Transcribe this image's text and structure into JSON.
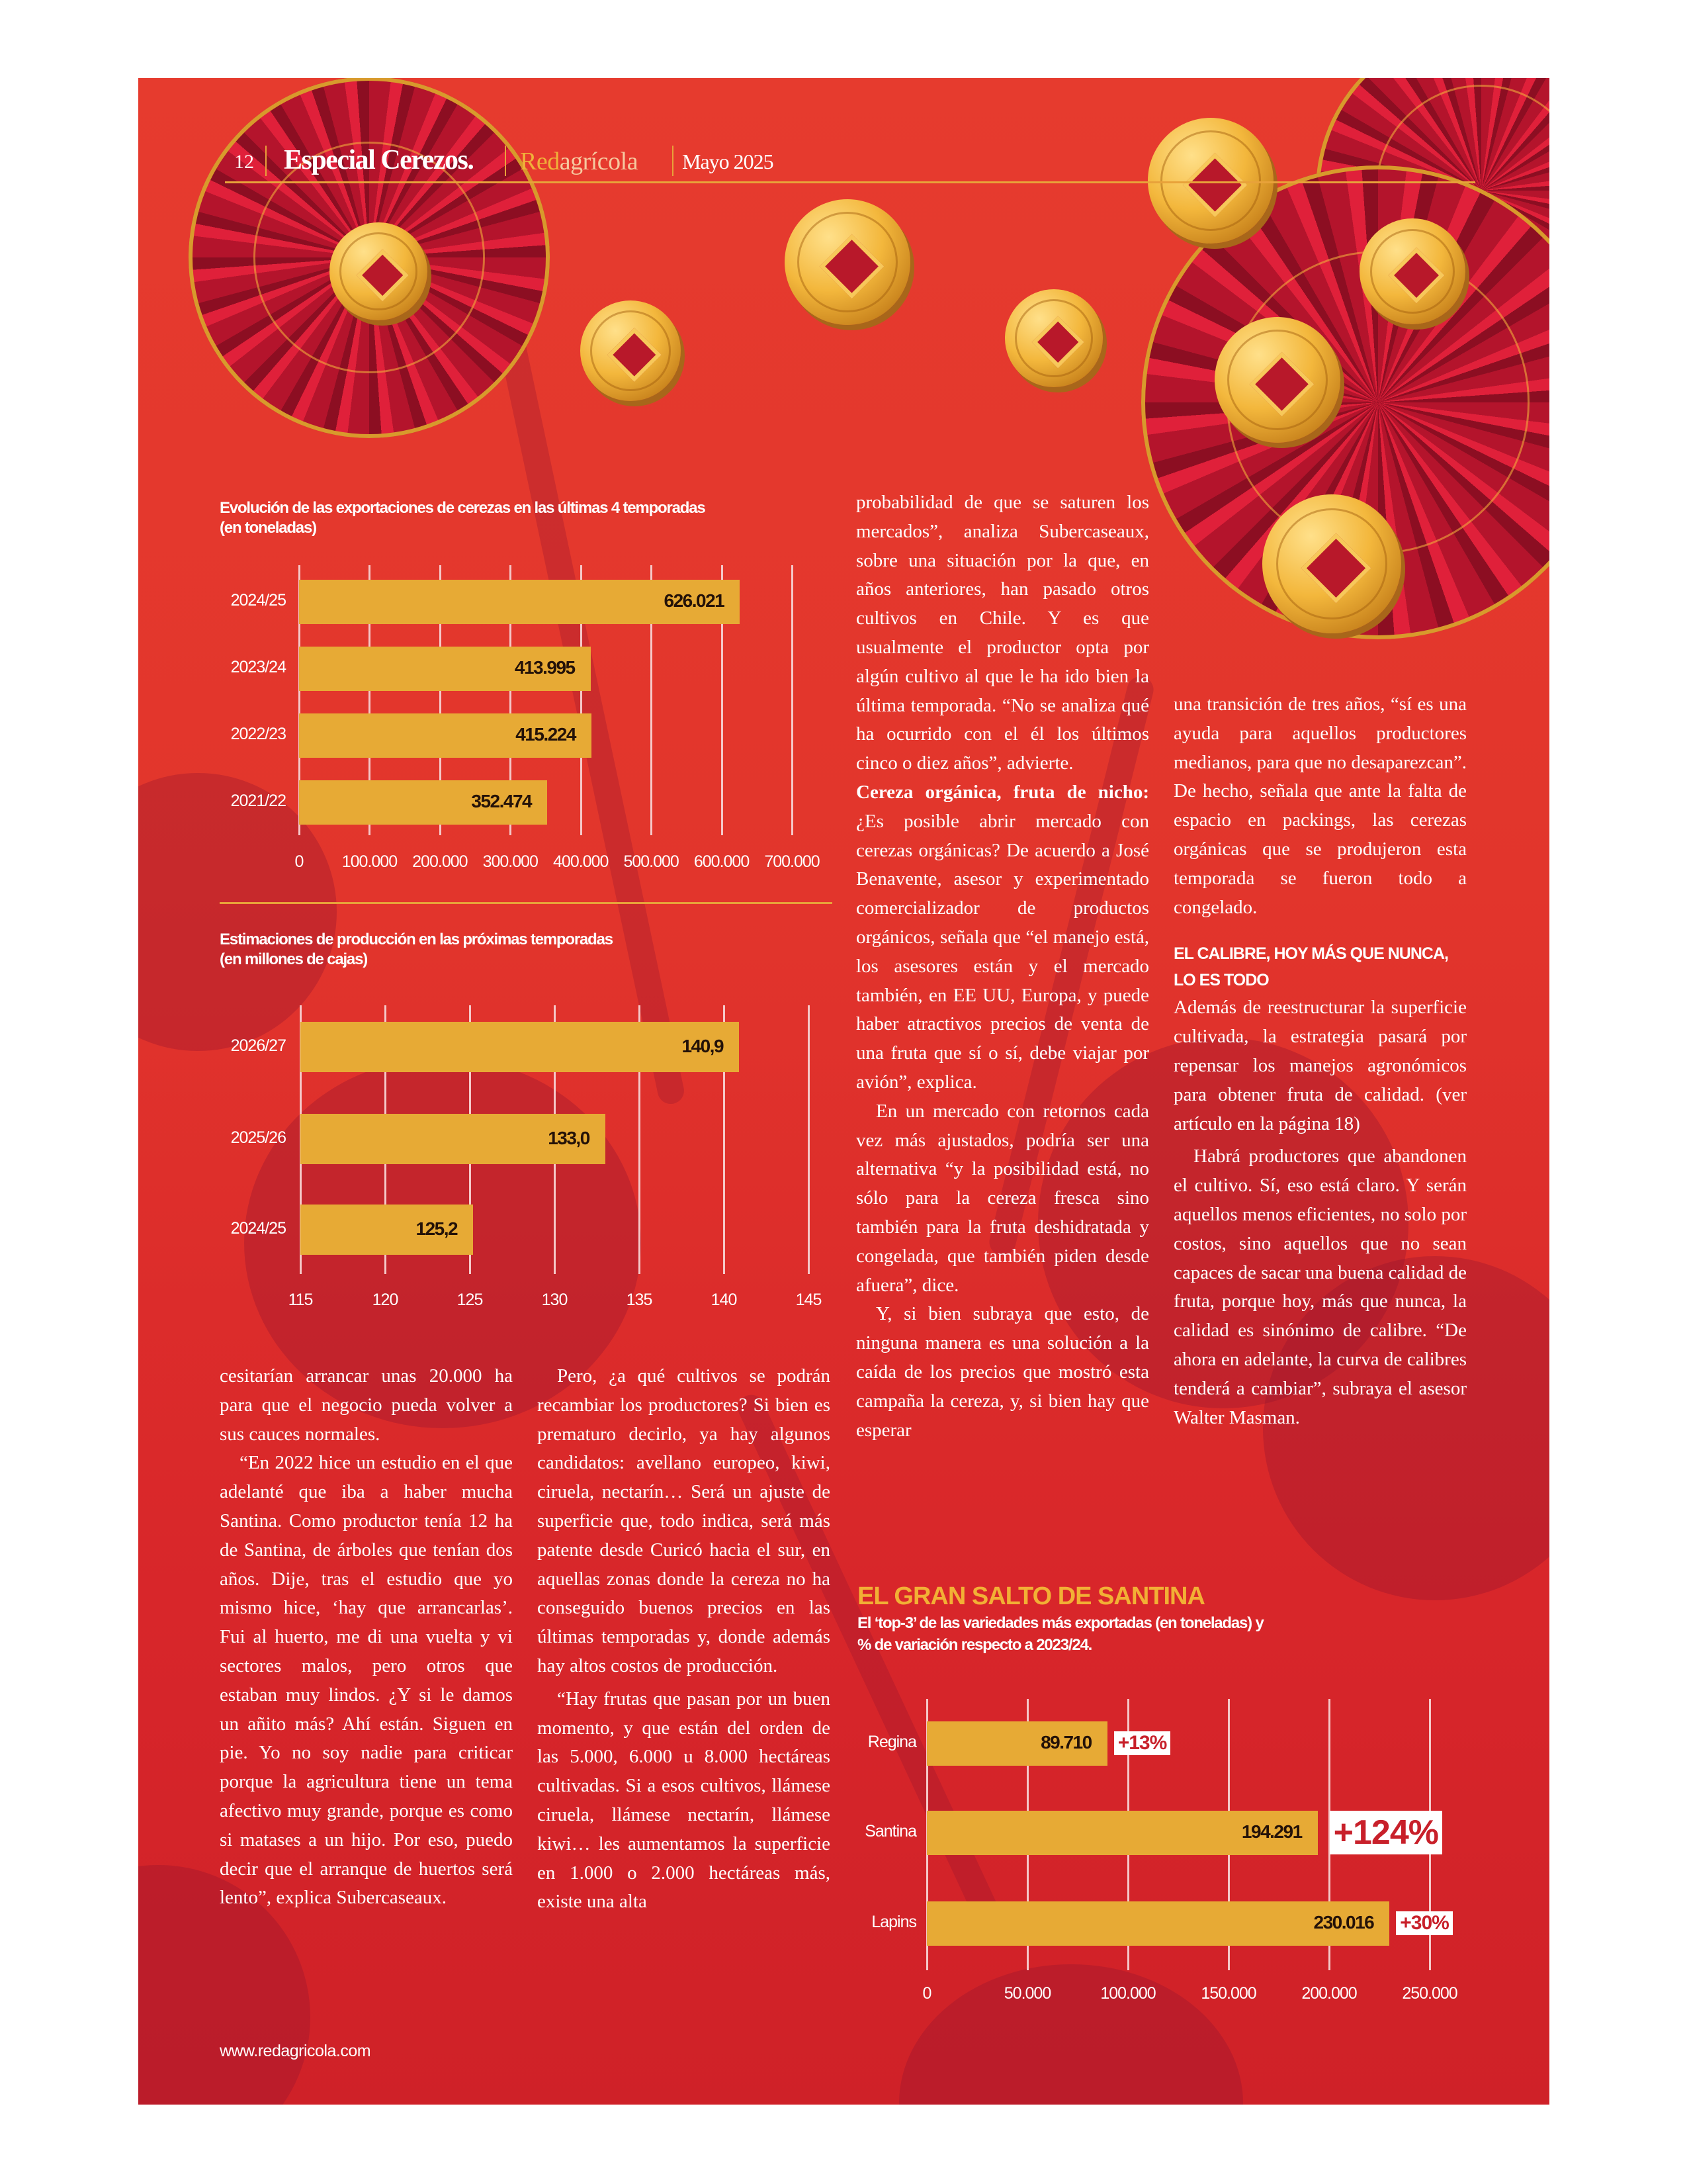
{
  "header": {
    "page_number": "12",
    "section": "Especial Cerezos.",
    "brand_red": "Red",
    "brand_agricola": "agrícola",
    "issue": "Mayo 2025"
  },
  "colors": {
    "bar": "#e7aa35",
    "accent": "#e8a23a",
    "background": "#e0342c"
  },
  "chart_data": [
    {
      "type": "bar",
      "title": "Evolución de las exportaciones de cerezas en las últimas 4 temporadas",
      "subtitle": "(en toneladas)",
      "categories": [
        "2024/25",
        "2023/24",
        "2022/23",
        "2021/22"
      ],
      "values": [
        626021,
        413995,
        415224,
        352474
      ],
      "value_labels": [
        "626.021",
        "413.995",
        "415.224",
        "352.474"
      ],
      "xlim": [
        0,
        700000
      ],
      "ticks": [
        "0",
        "100.000",
        "200.000",
        "300.000",
        "400.000",
        "500.000",
        "600.000",
        "700.000"
      ],
      "tick_values": [
        0,
        100000,
        200000,
        300000,
        400000,
        500000,
        600000,
        700000
      ],
      "grid": true
    },
    {
      "type": "bar",
      "title": "Estimaciones de producción en las próximas temporadas",
      "subtitle": "(en millones de cajas)",
      "categories": [
        "2026/27",
        "2025/26",
        "2024/25"
      ],
      "values": [
        140.9,
        133.0,
        125.2
      ],
      "value_labels": [
        "140,9",
        "133,0",
        "125,2"
      ],
      "xlim": [
        115,
        145
      ],
      "ticks": [
        "115",
        "120",
        "125",
        "130",
        "135",
        "140",
        "145"
      ],
      "tick_values": [
        115,
        120,
        125,
        130,
        135,
        140,
        145
      ],
      "grid": true
    },
    {
      "type": "bar",
      "title": "EL GRAN SALTO DE SANTINA",
      "subtitle": "El ‘top-3’ de las variedades más exportadas (en toneladas) y",
      "subtitle2": "% de variación respecto a 2023/24.",
      "categories": [
        "Regina",
        "Santina",
        "Lapins"
      ],
      "values": [
        89710,
        194291,
        230016
      ],
      "value_labels": [
        "89.710",
        "194.291",
        "230.016"
      ],
      "variation": [
        "+13%",
        "+124%",
        "+30%"
      ],
      "xlim": [
        0,
        250000
      ],
      "ticks": [
        "0",
        "50.000",
        "100.000",
        "150.000",
        "200.000",
        "250.000"
      ],
      "tick_values": [
        0,
        50000,
        100000,
        150000,
        200000,
        250000
      ],
      "grid": true
    }
  ],
  "article": {
    "left": [
      "cesitarían arrancar unas 20.000 ha para que el negocio pueda volver a sus cauces normales.",
      "“En 2022 hice un estudio en el que adelanté que iba a haber mucha Santina. Como productor tenía 12 ha de Santina, de árboles que tenían dos años. Dije, tras el estudio que yo mismo hice, ‘hay que arrancarlas’. Fui al huerto, me di una vuelta y vi sectores malos, pero otros que estaban muy lindos. ¿Y si le damos un añito más? Ahí están. Siguen en pie. Yo no soy nadie para criticar porque la agricultura tiene un tema afectivo muy grande, porque es como si matases a un hijo. Por eso, puedo decir que el arranque de huertos será lento”, explica Subercaseaux."
    ],
    "middle": [
      "Pero, ¿a qué cultivos se podrán recambiar los productores? Si bien es prematuro decirlo, ya hay algunos candidatos: avellano europeo, kiwi, ciruela, nectarín… Será un ajuste de superficie que, todo indica, será más patente desde Curicó hacia el sur, en aquellas zonas donde la cereza no ha conseguido buenos precios en las últimas temporadas y, donde además hay altos costos de producción.",
      "“Hay frutas que pasan por un buen momento, y que están del orden de las 5.000, 6.000 u 8.000 hectáreas cultivadas. Si a esos cultivos, llámese ciruela, llámese nectarín, llámese kiwi… les aumentamos la superficie en 1.000 o 2.000 hectáreas más, existe una alta"
    ],
    "right1": {
      "p1": "probabilidad de que se saturen los mercados”, analiza Subercaseaux, sobre una situación por la que, en años anteriores, han pasado otros cultivos en Chile. Y es que usualmente el productor opta por algún cultivo al que le ha ido bien la última temporada. “No se analiza qué ha ocurrido con el él los últimos cinco o diez años”, advierte.",
      "p2_lead": "Cereza orgánica, fruta de nicho:",
      "p2": " ¿Es posible abrir mercado con cerezas orgánicas? De acuerdo a José Benavente, asesor y experimentado comercializador de productos orgánicos, señala que “el manejo está, los asesores están y el mercado también, en EE UU, Europa, y puede haber atractivos precios de venta de una fruta que sí o sí, debe viajar por avión”, explica.",
      "p3": "En un mercado con retornos cada vez más ajustados, podría ser una alternativa “y la posibilidad está, no sólo para la cereza fresca sino también para la fruta deshidratada y congelada, que también piden desde afuera”, dice.",
      "p4": "Y, si bien subraya que esto, de ninguna manera es una solución a la caída de los precios que mostró esta campaña la cereza, y, si bien hay que esperar"
    },
    "right2": {
      "p1": "una transición de tres años, “sí es una ayuda para aquellos productores medianos, para que no desaparezcan”. De hecho, señala que ante la falta de espacio en packings, las cerezas orgánicas que se produjeron esta temporada se fueron todo a congelado.",
      "heading": "EL CALIBRE, HOY MÁS QUE NUNCA, LO ES TODO",
      "p2": "Además de reestructurar la superficie cultivada, la estrategia pasará por repensar los manejos agronómicos para obtener fruta de calidad. (ver artículo en la página 18)",
      "p3": "Habrá productores que abandonen el cultivo. Sí, eso está claro. Y serán aquellos menos eficientes, no solo por costos, sino aquellos que no sean capaces de sacar una buena calidad de fruta, porque hoy, más que nunca, la calidad es sinónimo de calibre. “De ahora en adelante, la curva de calibres tenderá a cambiar”, subraya el asesor Walter Masman."
    }
  },
  "footer": {
    "url": "www.redagricola.com"
  }
}
